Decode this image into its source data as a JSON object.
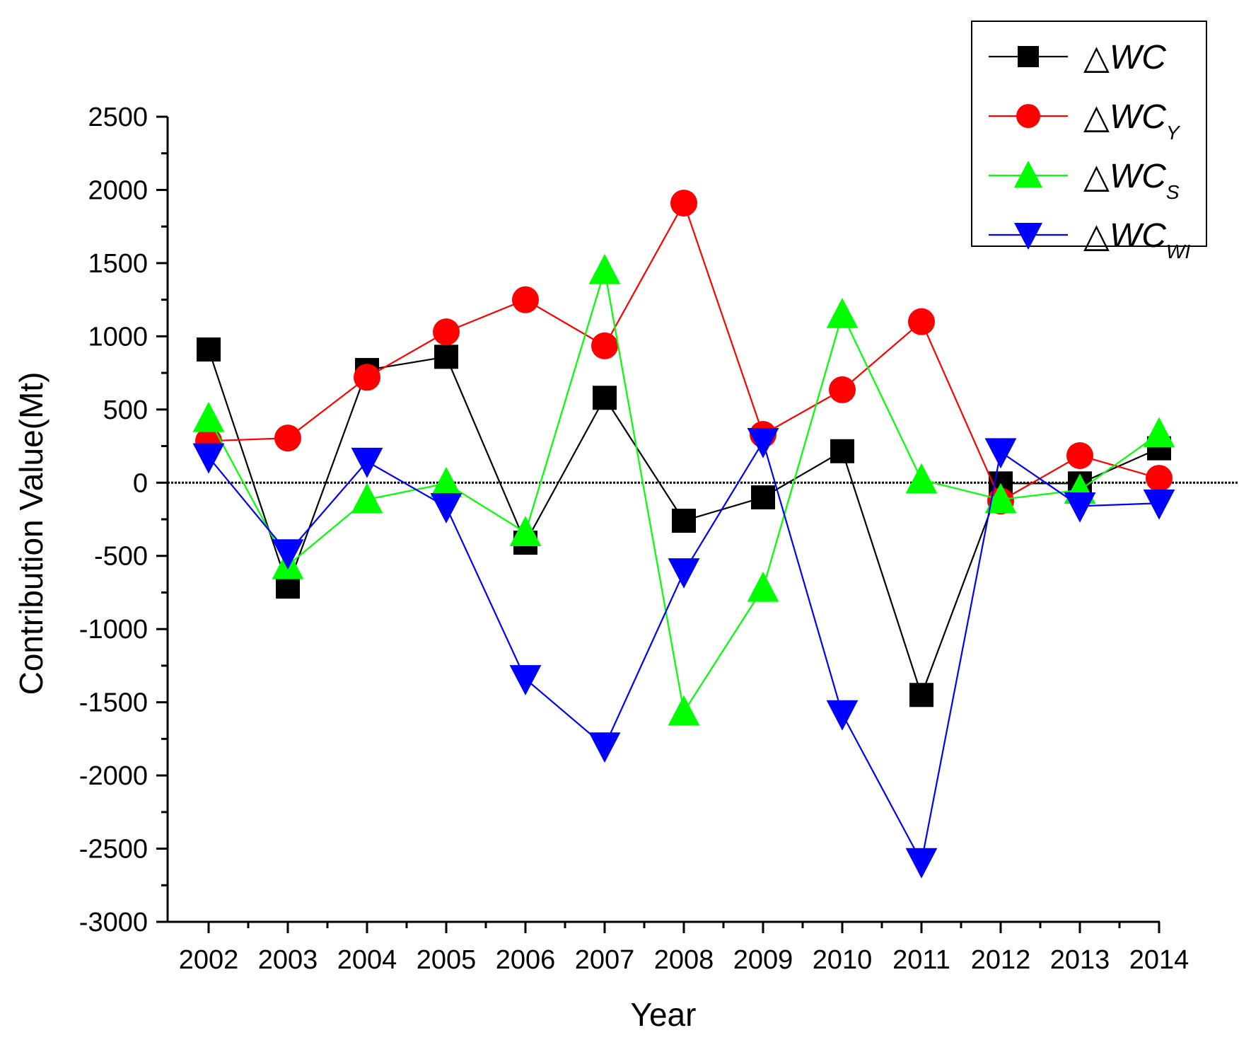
{
  "chart_data": {
    "type": "line",
    "title": "",
    "xlabel": "Year",
    "ylabel": "Contribution Value(Mt)",
    "ylim": [
      -3000,
      2500
    ],
    "yticks": [
      -3000,
      -2500,
      -2000,
      -1500,
      -1000,
      -500,
      0,
      500,
      1000,
      1500,
      2000,
      2500
    ],
    "ytick_labels": [
      "-3000",
      "-2500",
      "-2000",
      "-1500",
      "-1000",
      "-500",
      "0",
      "500",
      "1000",
      "1500",
      "2000",
      "2500"
    ],
    "categories": [
      "2002",
      "2003",
      "2004",
      "2005",
      "2006",
      "2007",
      "2008",
      "2009",
      "2010",
      "2011",
      "2012",
      "2013",
      "2014"
    ],
    "zero_line": true,
    "legend_position": "top-right",
    "series": [
      {
        "name": "△WC",
        "legend_prefix": "△",
        "legend_main": "WC",
        "legend_sub": "",
        "color": "#000000",
        "marker": "square",
        "values": [
          910,
          -710,
          770,
          860,
          -410,
          580,
          -260,
          -100,
          215,
          -1450,
          -5,
          -5,
          235
        ]
      },
      {
        "name": "△WC_Y",
        "legend_prefix": "△",
        "legend_main": "WC",
        "legend_sub": "Y",
        "color": "#ff0000",
        "marker": "circle",
        "values": [
          285,
          305,
          720,
          1030,
          1250,
          935,
          1910,
          330,
          635,
          1100,
          -125,
          185,
          30
        ]
      },
      {
        "name": "△WC_S",
        "legend_prefix": "△",
        "legend_main": "WC",
        "legend_sub": "S",
        "color": "#00ff00",
        "marker": "triangle-up",
        "values": [
          440,
          -565,
          -115,
          -5,
          -340,
          1450,
          -1565,
          -720,
          1150,
          20,
          -115,
          -50,
          335
        ]
      },
      {
        "name": "△WC_WI",
        "legend_prefix": "△",
        "legend_main": "WC",
        "legend_sub": "WI",
        "color": "#0000ff",
        "marker": "triangle-down",
        "values": [
          175,
          -480,
          145,
          -165,
          -1340,
          -1800,
          -610,
          280,
          -1580,
          -2590,
          210,
          -160,
          -140
        ]
      }
    ]
  }
}
